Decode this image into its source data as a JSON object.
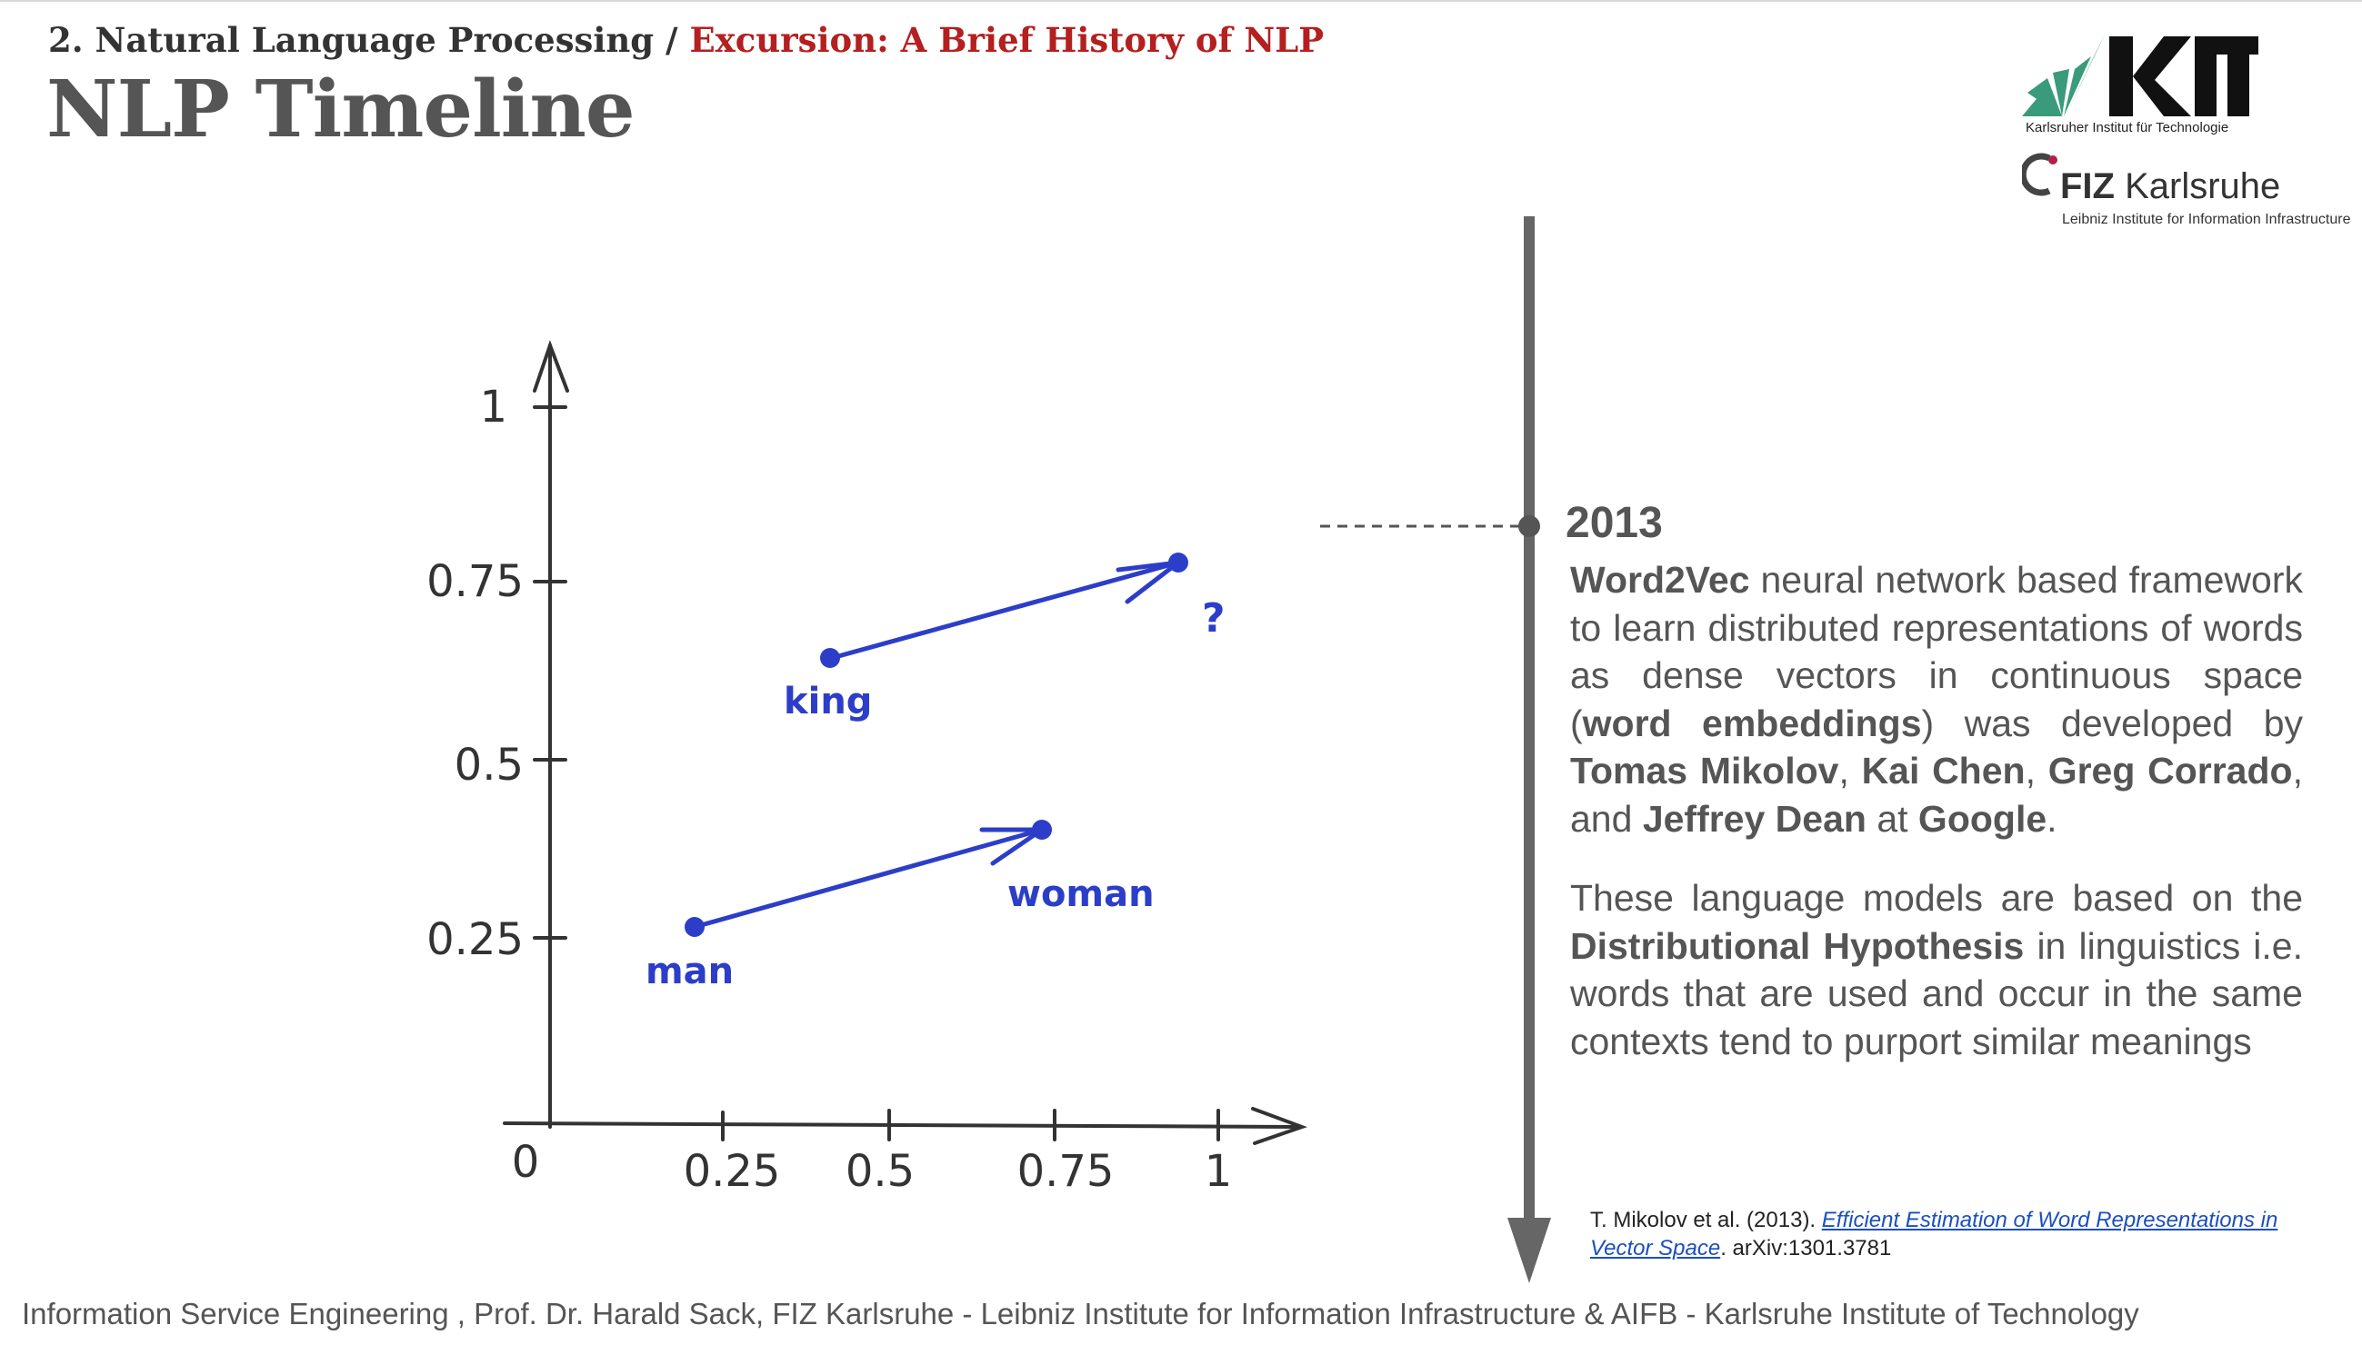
{
  "header": {
    "breadcrumb_part1": "2. Natural Language Processing / ",
    "breadcrumb_part2": "Excursion: A Brief History of NLP",
    "title": "NLP Timeline"
  },
  "logos": {
    "kit_text": "KIT",
    "kit_subtitle": "Karlsruher Institut für Technologie",
    "fiz_bold": "FIZ",
    "fiz_rest": " Karlsruhe",
    "fiz_subtitle": "Leibniz Institute for Information Infrastructure"
  },
  "diagram": {
    "origin_label": "0",
    "x_ticks": [
      "0.25",
      "0.5",
      "0.75",
      "1"
    ],
    "y_ticks": [
      "1",
      "0.75",
      "0.5",
      "0.25"
    ],
    "points": [
      {
        "label": "king",
        "x": 0.42,
        "y": 0.65
      },
      {
        "label": "?",
        "x": 0.95,
        "y": 0.78
      },
      {
        "label": "man",
        "x": 0.22,
        "y": 0.27
      },
      {
        "label": "woman",
        "x": 0.72,
        "y": 0.41
      }
    ],
    "line_color": "#2c3ec8"
  },
  "timeline": {
    "year": "2013",
    "para1": [
      {
        "t": "Word2Vec",
        "b": true
      },
      {
        "t": " neural network based framework to learn distributed representations of words as dense vectors in continuous space (",
        "b": false
      },
      {
        "t": "word embeddings",
        "b": true
      },
      {
        "t": ") was developed by ",
        "b": false
      },
      {
        "t": "Tomas Mikolov",
        "b": true
      },
      {
        "t": ", ",
        "b": false
      },
      {
        "t": "Kai Chen",
        "b": true
      },
      {
        "t": ", ",
        "b": false
      },
      {
        "t": "Greg Corrado",
        "b": true
      },
      {
        "t": ", and ",
        "b": false
      },
      {
        "t": "Jeffrey Dean",
        "b": true
      },
      {
        "t": " at ",
        "b": false
      },
      {
        "t": "Google",
        "b": true
      },
      {
        "t": ".",
        "b": false
      }
    ],
    "para2": [
      {
        "t": "These language models are based on the ",
        "b": false
      },
      {
        "t": "Distributional Hypothesis",
        "b": true
      },
      {
        "t": " in linguistics i.e. words that are used and occur in the same contexts tend to purport similar meanings",
        "b": false
      }
    ]
  },
  "reference": {
    "prefix": "T. Mikolov et al. (2013). ",
    "link_text": "Efficient Estimation of Word Representations in Vector Space",
    "suffix": ". arXiv:1301.3781"
  },
  "footer": {
    "text": "Information Service Engineering , Prof. Dr. Harald Sack, FIZ Karlsruhe - Leibniz Institute for Information Infrastructure & AIFB - Karlsruhe Institute of Technology"
  }
}
